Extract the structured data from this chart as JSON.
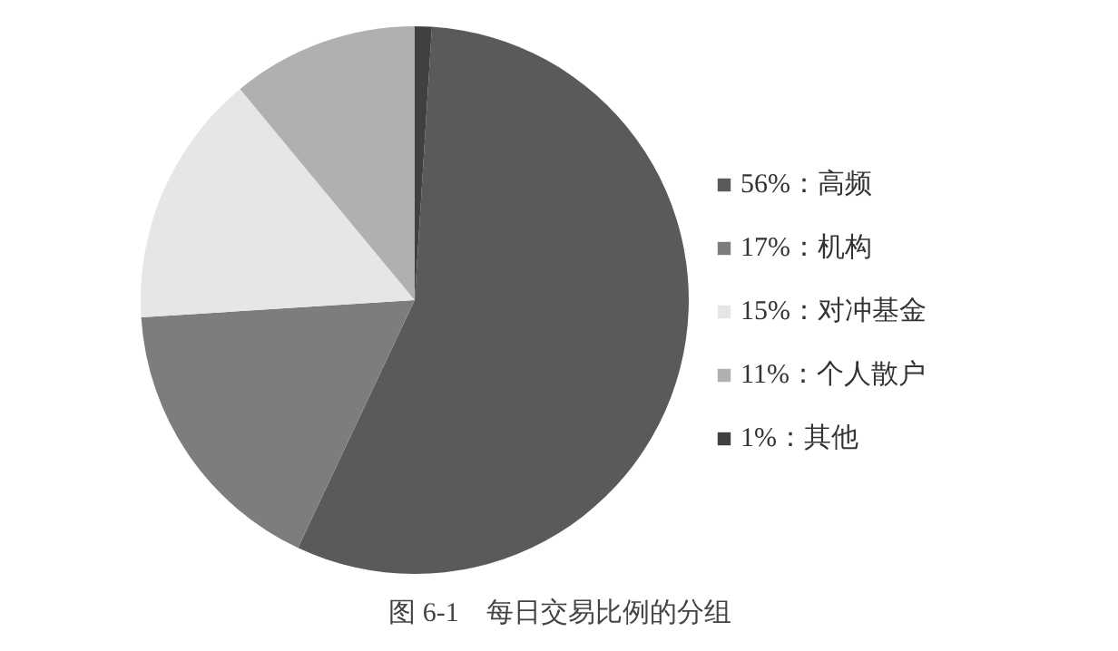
{
  "chart_data": {
    "type": "pie",
    "title": "图 6-1　每日交易比例的分组",
    "categories": [
      "56%：高频",
      "17%：机构",
      "15%：对冲基金",
      "11%：个人散户",
      "1%：其他"
    ],
    "values": [
      56,
      17,
      15,
      11,
      1
    ],
    "colors": [
      "#5a5a5a",
      "#7d7d7d",
      "#e6e6e6",
      "#b0b0b0",
      "#404040"
    ],
    "legend": "right"
  }
}
